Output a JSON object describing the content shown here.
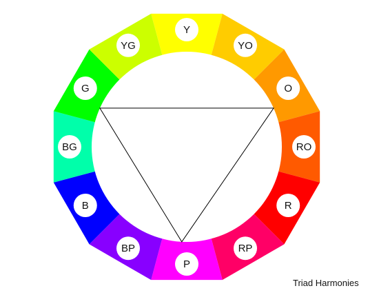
{
  "caption": "Triad Harmonies",
  "segments": [
    {
      "label": "Y",
      "color": "#ffff00"
    },
    {
      "label": "YO",
      "color": "#ffcc00"
    },
    {
      "label": "O",
      "color": "#ff9900"
    },
    {
      "label": "RO",
      "color": "#ff5a00"
    },
    {
      "label": "R",
      "color": "#ff0000"
    },
    {
      "label": "RP",
      "color": "#ff0066"
    },
    {
      "label": "P",
      "color": "#ff00ff"
    },
    {
      "label": "BP",
      "color": "#8800ff"
    },
    {
      "label": "B",
      "color": "#0000ff"
    },
    {
      "label": "BG",
      "color": "#00ffaa"
    },
    {
      "label": "G",
      "color": "#00ff00"
    },
    {
      "label": "YG",
      "color": "#ccff00"
    }
  ],
  "triad": [
    "O",
    "P",
    "G"
  ]
}
